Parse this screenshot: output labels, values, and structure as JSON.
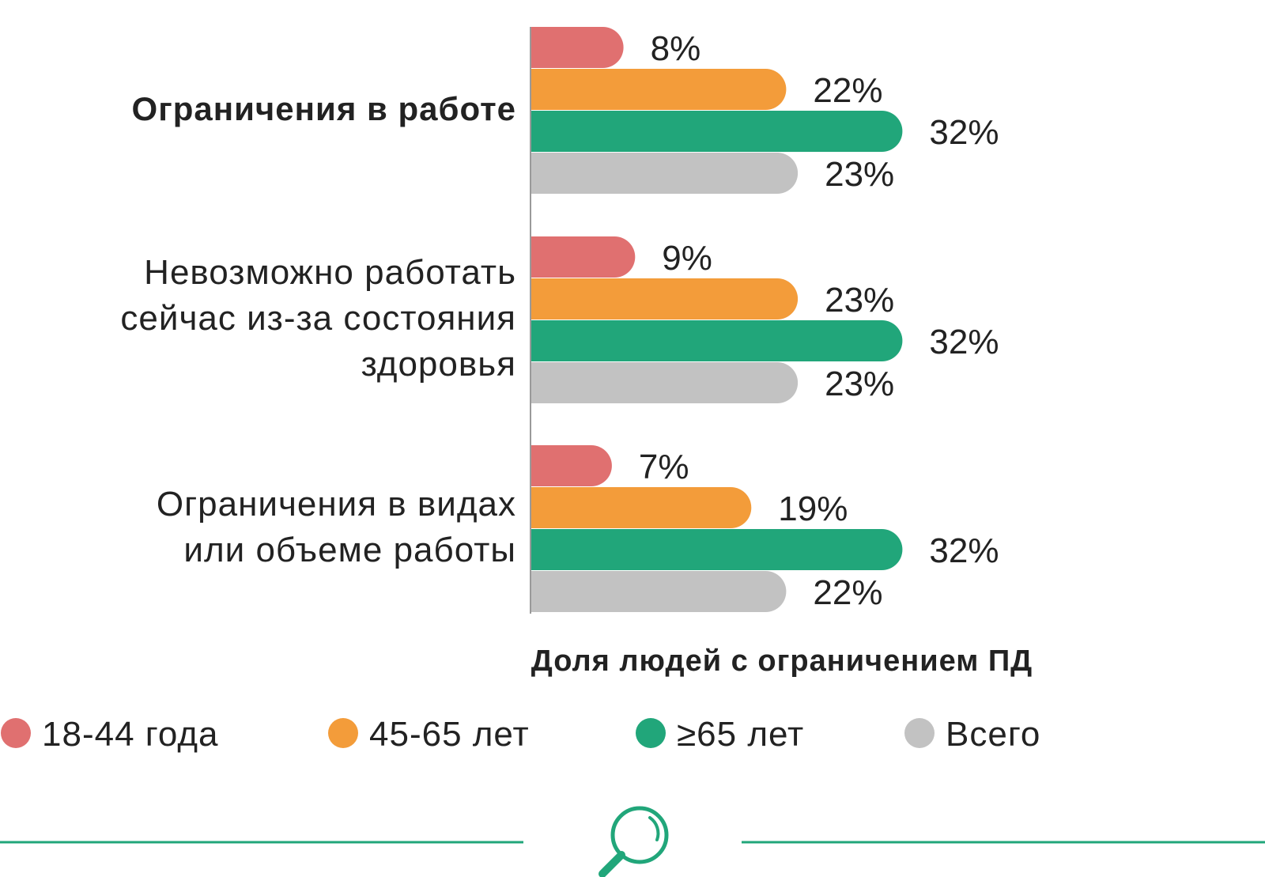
{
  "chart_data": {
    "type": "bar",
    "orientation": "horizontal",
    "xlabel": "Доля людей с ограничением ПД",
    "ylabel": "",
    "unit": "%",
    "xlim": [
      0,
      40
    ],
    "categories": [
      [
        "Ограничения в работе"
      ],
      [
        "Невозможно работать",
        "сейчас из-за состояния",
        "здоровья"
      ],
      [
        "Ограничения в видах",
        "или объеме работы"
      ]
    ],
    "series": [
      {
        "name": "18-44 года",
        "color": "#e07070",
        "values": [
          8,
          9,
          7
        ],
        "labels": [
          "8%",
          "9%",
          "7%"
        ]
      },
      {
        "name": "45-65 лет",
        "color": "#f39c3a",
        "values": [
          22,
          23,
          19
        ],
        "labels": [
          "22%",
          "23%",
          "19%"
        ]
      },
      {
        "name": "≥65 лет",
        "color": "#21a67a",
        "values": [
          32,
          32,
          32
        ],
        "labels": [
          "32%",
          "32%",
          "32%"
        ]
      },
      {
        "name": "Всего",
        "color": "#c2c2c2",
        "values": [
          23,
          23,
          22
        ],
        "labels": [
          "23%",
          "23%",
          "22%"
        ]
      }
    ],
    "legend_position": "bottom"
  },
  "decor": {
    "search_icon": "magnifier-icon",
    "line_color": "#21a67a"
  }
}
